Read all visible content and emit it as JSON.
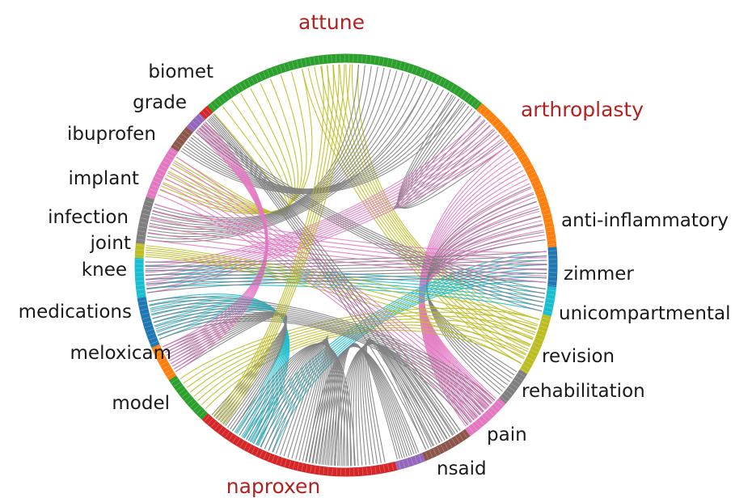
{
  "diagram": {
    "type": "chord",
    "segments": [
      {
        "id": "attune",
        "label": "attune",
        "color": "#2ca02c",
        "highlight": true
      },
      {
        "id": "arthroplasty",
        "label": "arthroplasty",
        "color": "#ff7f0e",
        "highlight": true
      },
      {
        "id": "anti-inflammatory",
        "label": "anti-inflammatory",
        "color": "#1f77b4",
        "highlight": false
      },
      {
        "id": "zimmer",
        "label": "zimmer",
        "color": "#17becf",
        "highlight": false
      },
      {
        "id": "unicompartmental",
        "label": "unicompartmental",
        "color": "#bcbd22",
        "highlight": false
      },
      {
        "id": "revision",
        "label": "revision",
        "color": "#7f7f7f",
        "highlight": false
      },
      {
        "id": "rehabilitation",
        "label": "rehabilitation",
        "color": "#e377c2",
        "highlight": false
      },
      {
        "id": "pain",
        "label": "pain",
        "color": "#8c564b",
        "highlight": false
      },
      {
        "id": "nsaid",
        "label": "nsaid",
        "color": "#9467bd",
        "highlight": false
      },
      {
        "id": "naproxen",
        "label": "naproxen",
        "color": "#d62728",
        "highlight": true
      },
      {
        "id": "model",
        "label": "model",
        "color": "#2ca02c",
        "highlight": false
      },
      {
        "id": "meloxicam",
        "label": "meloxicam",
        "color": "#ff7f0e",
        "highlight": false
      },
      {
        "id": "medications",
        "label": "medications",
        "color": "#1f77b4",
        "highlight": false
      },
      {
        "id": "knee",
        "label": "knee",
        "color": "#17becf",
        "highlight": false
      },
      {
        "id": "joint",
        "label": "joint",
        "color": "#bcbd22",
        "highlight": false
      },
      {
        "id": "infection",
        "label": "infection",
        "color": "#7f7f7f",
        "highlight": false
      },
      {
        "id": "implant",
        "label": "implant",
        "color": "#e377c2",
        "highlight": false
      },
      {
        "id": "ibuprofen",
        "label": "ibuprofen",
        "color": "#8c564b",
        "highlight": false
      },
      {
        "id": "grade",
        "label": "grade",
        "color": "#9467bd",
        "highlight": false
      },
      {
        "id": "biomet",
        "label": "biomet",
        "color": "#d62728",
        "highlight": false
      }
    ],
    "label_colors": {
      "normal": "#1a1a1a",
      "highlight": "#b22222"
    }
  }
}
